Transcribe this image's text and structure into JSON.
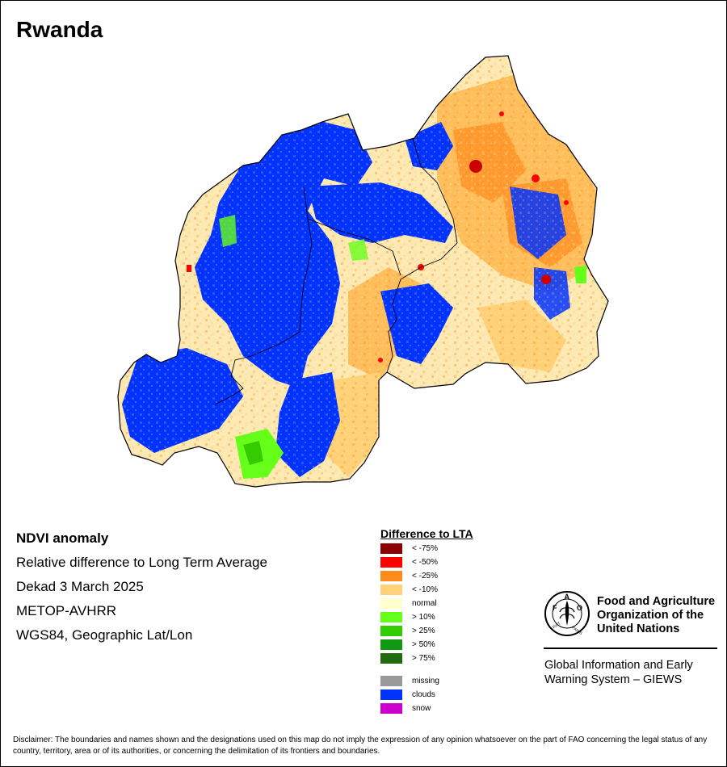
{
  "title": "Rwanda",
  "info": {
    "lines": [
      "NDVI anomaly",
      "Relative difference to Long Term Average",
      "Dekad 3 March 2025",
      "METOP-AVHRR",
      "WGS84, Geographic Lat/Lon"
    ]
  },
  "legend": {
    "title": "Difference to LTA",
    "items": [
      {
        "label": "< -75%",
        "color": "#8b0000"
      },
      {
        "label": "< -50%",
        "color": "#ff0000"
      },
      {
        "label": "< -25%",
        "color": "#ff8c1a"
      },
      {
        "label": "< -10%",
        "color": "#ffd27a"
      },
      {
        "label": "normal",
        "color": "#ffffcc"
      },
      {
        "label": "> 10%",
        "color": "#66ff1a"
      },
      {
        "label": "> 25%",
        "color": "#33cc00"
      },
      {
        "label": "> 50%",
        "color": "#119911"
      },
      {
        "label": "> 75%",
        "color": "#1f6b0f"
      },
      {
        "label": "missing",
        "color": "#999999"
      },
      {
        "label": "clouds",
        "color": "#0033ff"
      },
      {
        "label": "snow",
        "color": "#cc00cc"
      }
    ]
  },
  "organization": {
    "logo_text": "FAO",
    "logo_motto": "FIAT PANIS",
    "name_lines": [
      "Food and Agriculture",
      "Organization of the",
      "United Nations"
    ],
    "giews_lines": [
      "Global Information and Early",
      "Warning System – GIEWS"
    ]
  },
  "disclaimer": "Disclaimer: The boundaries and names shown and the designations used on this map do not imply the expression of any opinion whatsoever on the part of FAO concerning the legal status of any country, territory, area or of its authorities, or concerning the delimitation of its frontiers and boundaries."
}
